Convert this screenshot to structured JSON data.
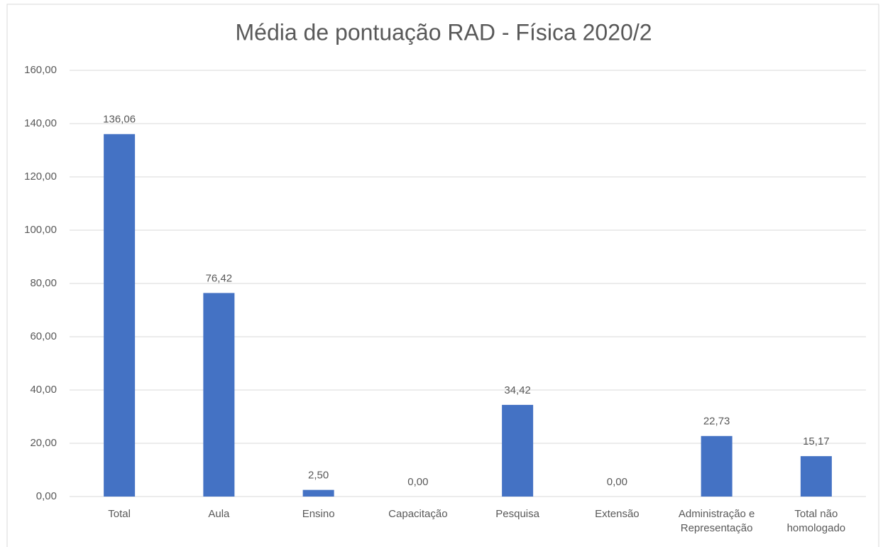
{
  "chart_data": {
    "type": "bar",
    "title": "Média de pontuação RAD - Física 2020/2",
    "categories": [
      "Total",
      "Aula",
      "Ensino",
      "Capacitação",
      "Pesquisa",
      "Extensão",
      "Administração e Representação",
      "Total não homologado"
    ],
    "values": [
      136.06,
      76.42,
      2.5,
      0,
      34.42,
      0,
      22.73,
      15.17
    ],
    "value_labels": [
      "136,06",
      "76,42",
      "2,50",
      "0,00",
      "34,42",
      "0,00",
      "22,73",
      "15,17"
    ],
    "color": "#4472c4",
    "ylim": [
      0,
      160
    ],
    "yticks": [
      {
        "value": 0,
        "label": "0,00"
      },
      {
        "value": 20,
        "label": "20,00"
      },
      {
        "value": 40,
        "label": "40,00"
      },
      {
        "value": 60,
        "label": "60,00"
      },
      {
        "value": 80,
        "label": "80,00"
      },
      {
        "value": 100,
        "label": "100,00"
      },
      {
        "value": 120,
        "label": "120,00"
      },
      {
        "value": 140,
        "label": "140,00"
      },
      {
        "value": 160,
        "label": "160,00"
      }
    ],
    "grid": true
  }
}
